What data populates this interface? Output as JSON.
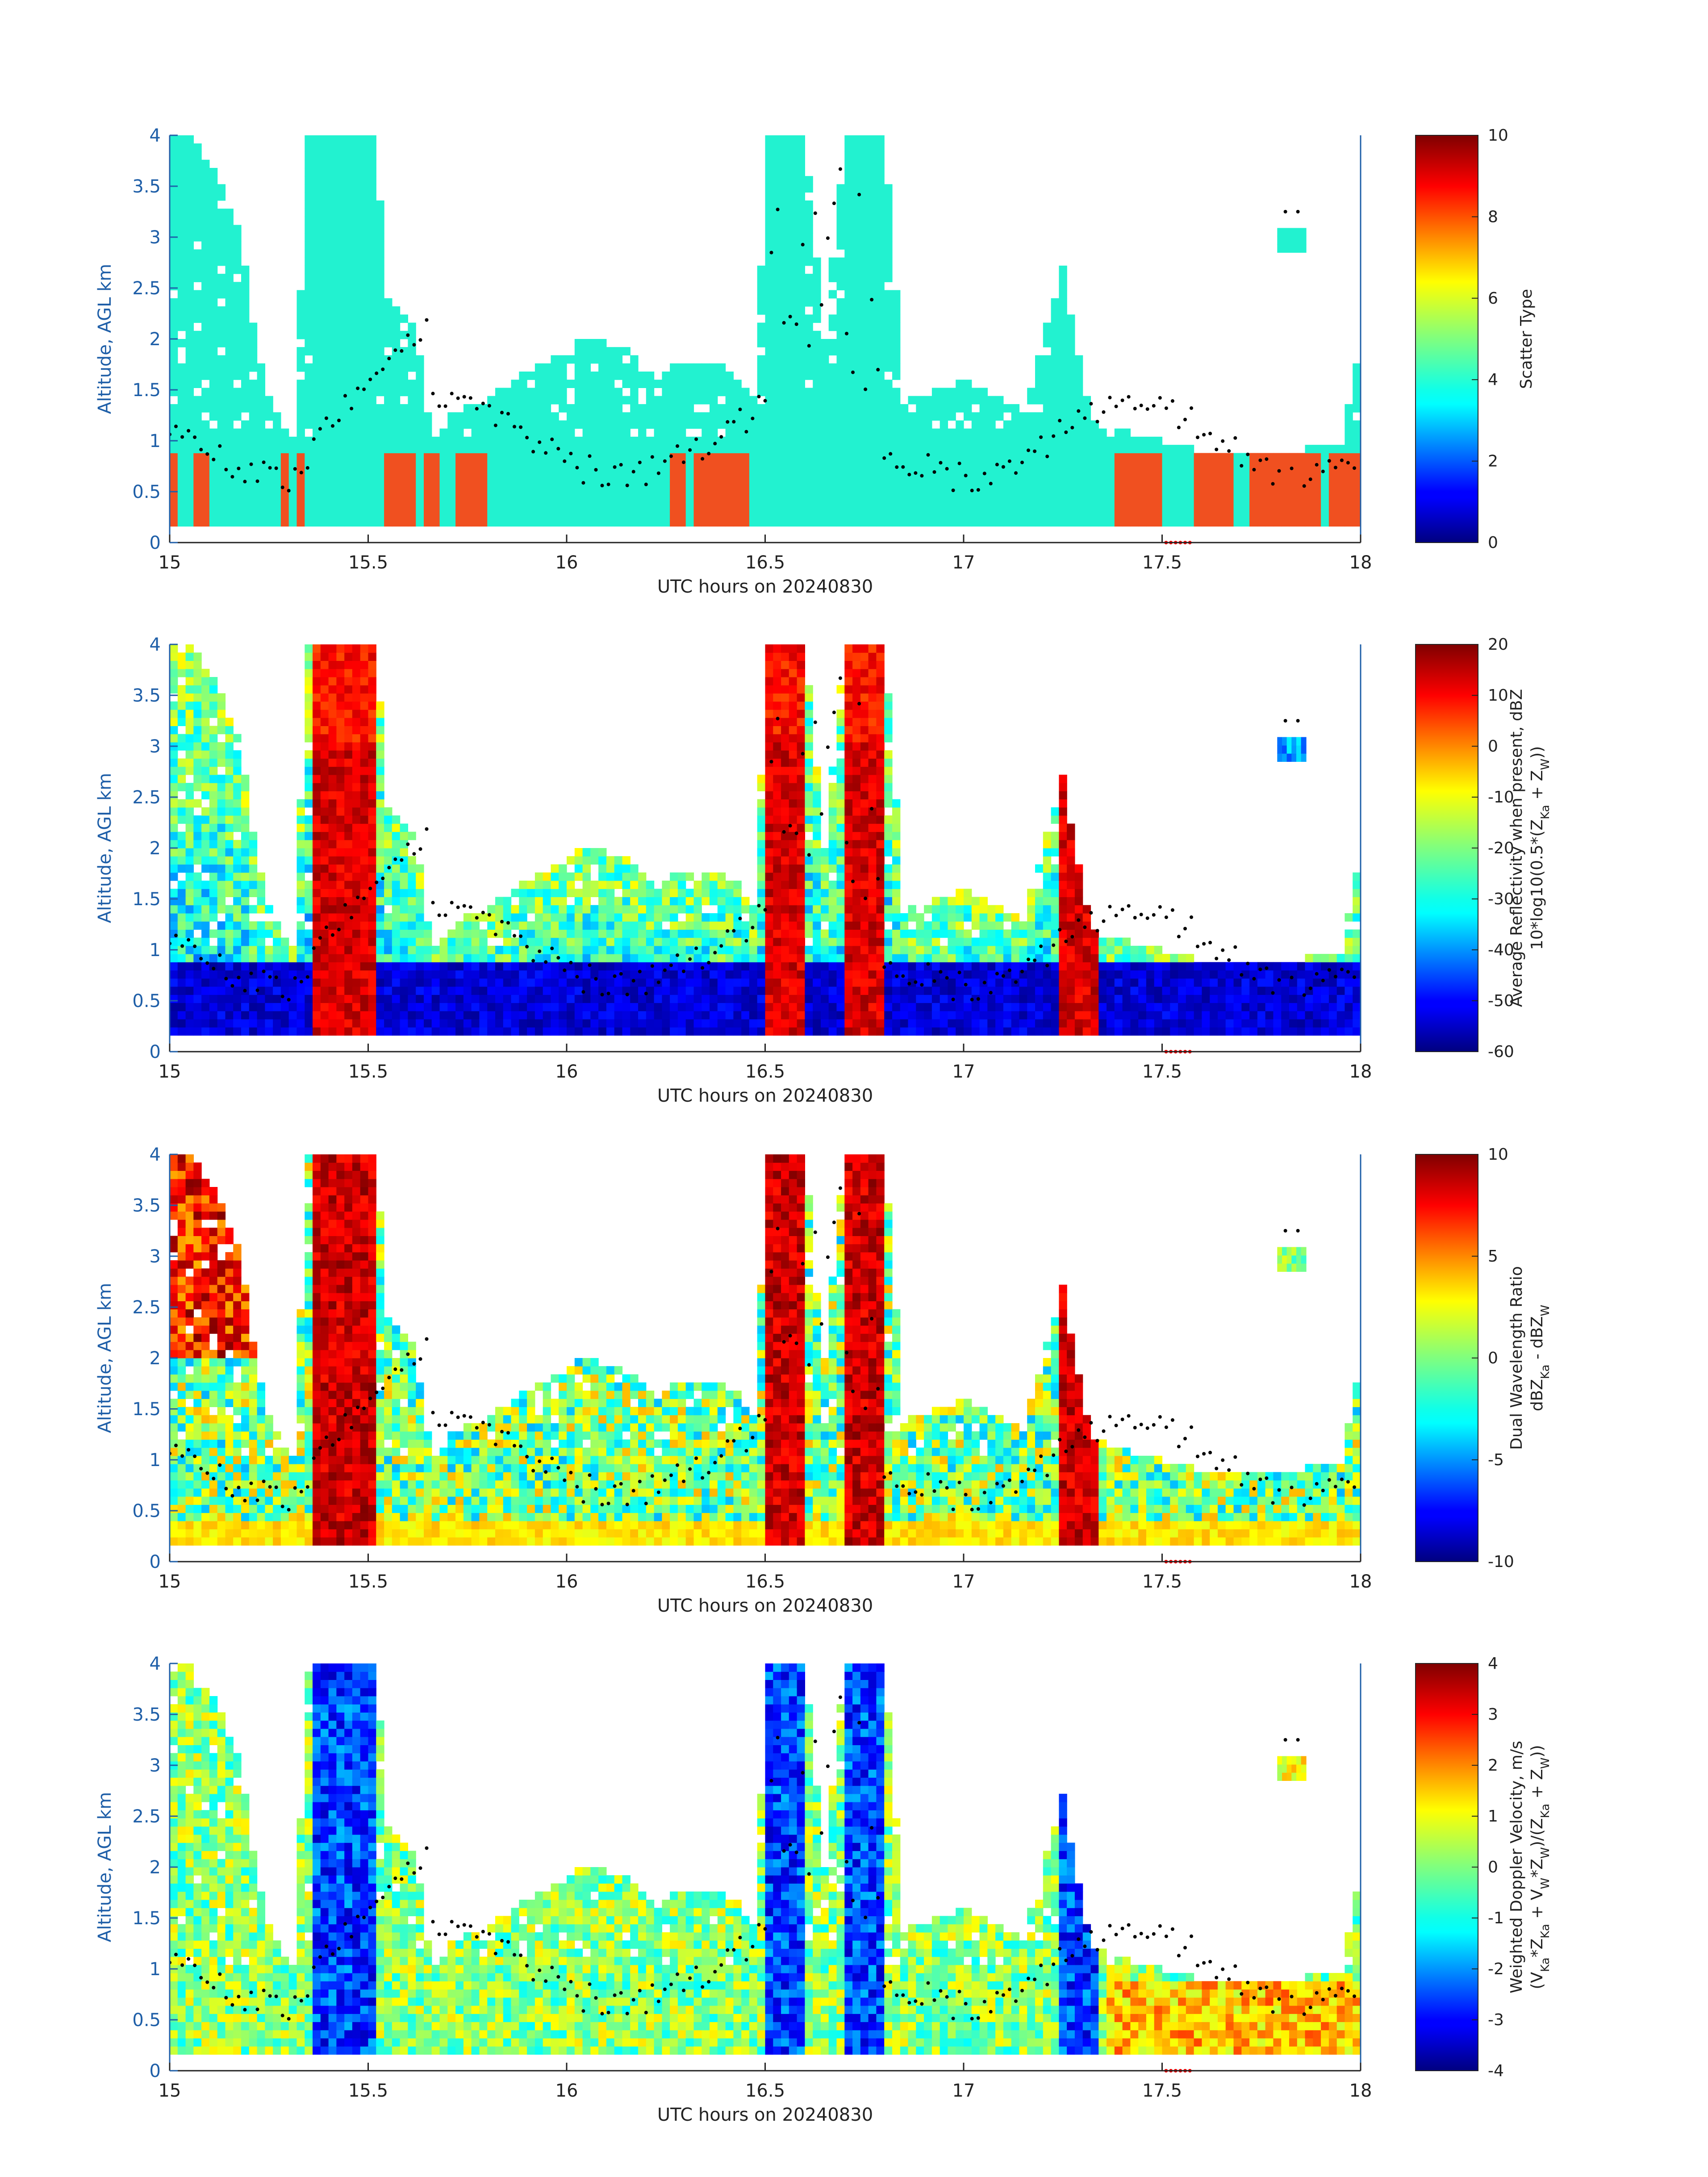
{
  "chart_data": [
    {
      "type": "heatmap",
      "x": [
        15,
        15.5,
        16,
        16.5,
        17,
        17.5,
        18
      ],
      "y": [
        0,
        0.5,
        1,
        1.5,
        2,
        2.5,
        3,
        3.5,
        4
      ],
      "xlim": [
        15,
        18
      ],
      "ylim": [
        0,
        4
      ],
      "xlabel": "UTC hours on 20240830",
      "ylabel": "Altitude, AGL km",
      "colorbar": {
        "label": "Scatter Type",
        "ticks": [
          0,
          2,
          4,
          6,
          8,
          10
        ],
        "lim": [
          0,
          10
        ]
      },
      "colors": {
        "cloud": "#22f2d0",
        "rain": "#f05020"
      },
      "tick_labels_x": [
        "15",
        "15.5",
        "16",
        "16.5",
        "17",
        "17.5",
        "18"
      ],
      "tick_labels_y": [
        "0",
        "0.5",
        "1",
        "1.5",
        "2",
        "2.5",
        "3",
        "3.5",
        "4"
      ]
    },
    {
      "type": "heatmap",
      "x": [
        15,
        15.5,
        16,
        16.5,
        17,
        17.5,
        18
      ],
      "y": [
        0,
        0.5,
        1,
        1.5,
        2,
        2.5,
        3,
        3.5,
        4
      ],
      "xlim": [
        15,
        18
      ],
      "ylim": [
        0,
        4
      ],
      "xlabel": "UTC hours on 20240830",
      "ylabel": "Altitude, AGL km",
      "colorbar": {
        "label_line1": "Average Reflectivity when present, dBZ",
        "label_line2": "10*log10(0.5*(Z",
        "label_sub1": "Ka",
        "label_mid": " + Z",
        "label_sub2": "W",
        "label_end": "))",
        "ticks": [
          -60,
          -50,
          -40,
          -30,
          -20,
          -10,
          0,
          10,
          20
        ],
        "lim": [
          -60,
          20
        ]
      },
      "tick_labels_x": [
        "15",
        "15.5",
        "16",
        "16.5",
        "17",
        "17.5",
        "18"
      ],
      "tick_labels_y": [
        "0",
        "0.5",
        "1",
        "1.5",
        "2",
        "2.5",
        "3",
        "3.5",
        "4"
      ]
    },
    {
      "type": "heatmap",
      "x": [
        15,
        15.5,
        16,
        16.5,
        17,
        17.5,
        18
      ],
      "y": [
        0,
        0.5,
        1,
        1.5,
        2,
        2.5,
        3,
        3.5,
        4
      ],
      "xlim": [
        15,
        18
      ],
      "ylim": [
        0,
        4
      ],
      "xlabel": "UTC hours on 20240830",
      "ylabel": "Altitude, AGL km",
      "colorbar": {
        "label_line1": "Dual Wavelength Ratio",
        "label_line2": "dBZ",
        "label_sub1": "Ka",
        "label_mid": " - dBZ",
        "label_sub2": "W",
        "label_end": "",
        "ticks": [
          -10,
          -5,
          0,
          5,
          10
        ],
        "lim": [
          -10,
          10
        ]
      },
      "tick_labels_x": [
        "15",
        "15.5",
        "16",
        "16.5",
        "17",
        "17.5",
        "18"
      ],
      "tick_labels_y": [
        "0",
        "0.5",
        "1",
        "1.5",
        "2",
        "2.5",
        "3",
        "3.5",
        "4"
      ]
    },
    {
      "type": "heatmap",
      "x": [
        15,
        15.5,
        16,
        16.5,
        17,
        17.5,
        18
      ],
      "y": [
        0,
        0.5,
        1,
        1.5,
        2,
        2.5,
        3,
        3.5,
        4
      ],
      "xlim": [
        15,
        18
      ],
      "ylim": [
        0,
        4
      ],
      "xlabel": "UTC hours on 20240830",
      "ylabel": "Altitude, AGL km",
      "colorbar": {
        "label_line1": "Weighted Doppler Velocity, m/s",
        "label_line2": "(V",
        "label_sub1": "Ka",
        "label_mid": "*Z",
        "label_sub2": "Ka",
        "label_end": " + V_W*Z_W)/(Z_Ka + Z_W))",
        "ticks": [
          -4,
          -3,
          -2,
          -1,
          0,
          1,
          2,
          3,
          4
        ],
        "lim": [
          -4,
          4
        ]
      },
      "tick_labels_x": [
        "15",
        "15.5",
        "16",
        "16.5",
        "17",
        "17.5",
        "18"
      ],
      "tick_labels_y": [
        "0",
        "0.5",
        "1",
        "1.5",
        "2",
        "2.5",
        "3",
        "3.5",
        "4"
      ]
    }
  ]
}
